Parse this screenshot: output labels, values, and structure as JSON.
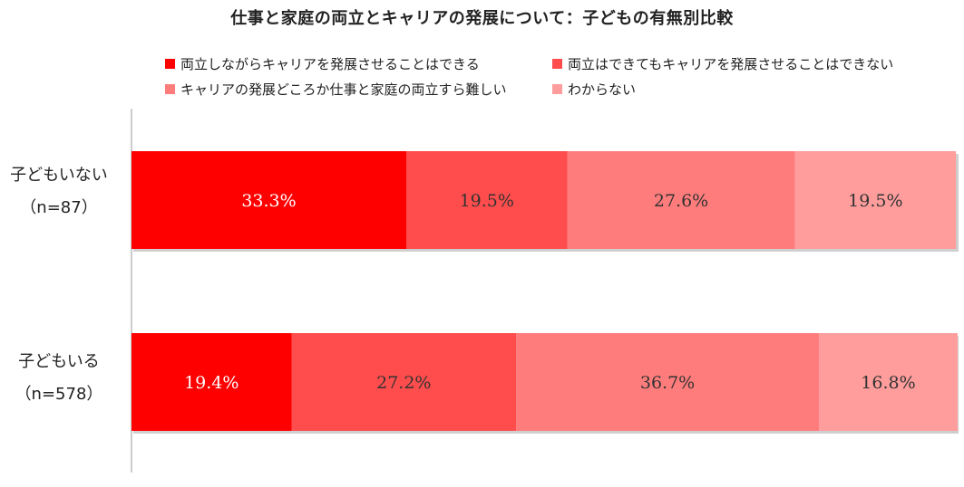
{
  "chart_data": {
    "type": "bar",
    "orientation": "horizontal",
    "stacked": true,
    "title": "仕事と家庭の両立とキャリアの発展について：子どもの有無別比較",
    "categories": [
      {
        "line1": "子どもいない",
        "line2": "（n=87）"
      },
      {
        "line1": "子どもいる",
        "line2": "（n=578）"
      }
    ],
    "series": [
      {
        "name": "両立しながらキャリアを発展させることはできる",
        "color": "#ff0000",
        "values": [
          33.3,
          19.4
        ],
        "labels": [
          "33.3%",
          "19.4%"
        ],
        "label_color": "#ffffff"
      },
      {
        "name": "両立はできてもキャリアを発展させることはできない",
        "color": "#ff4d4d",
        "values": [
          19.5,
          27.2
        ],
        "labels": [
          "19.5%",
          "27.2%"
        ],
        "label_color": "#333333"
      },
      {
        "name": "キャリアの発展どころか仕事と家庭の両立すら難しい",
        "color": "#ff7c7c",
        "values": [
          27.6,
          36.7
        ],
        "labels": [
          "27.6%",
          "36.7%"
        ],
        "label_color": "#333333"
      },
      {
        "name": "わからない",
        "color": "#ff9d9d",
        "values": [
          19.5,
          16.8
        ],
        "labels": [
          "19.5%",
          "16.8%"
        ],
        "label_color": "#333333"
      }
    ],
    "xlim": [
      0,
      100
    ],
    "legend_position": "top"
  }
}
